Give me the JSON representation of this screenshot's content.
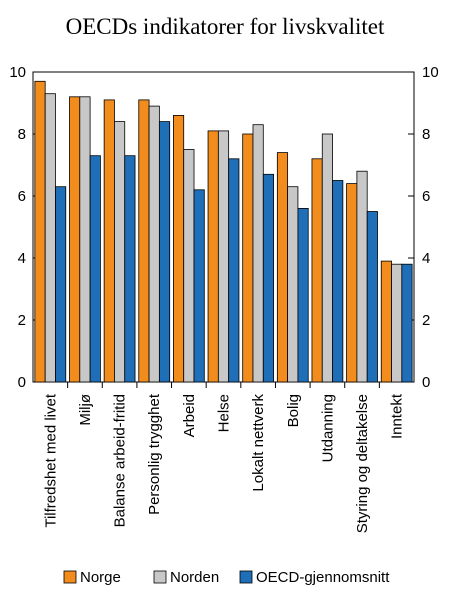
{
  "chart_data": {
    "type": "bar",
    "title": "OECDs indikatorer for livskvalitet",
    "xlabel": "",
    "ylabel": "",
    "ylim": [
      0,
      10
    ],
    "yticks": [
      0,
      2,
      4,
      6,
      8,
      10
    ],
    "categories": [
      "Tilfredshet med livet",
      "Miljø",
      "Balanse arbeid-fritid",
      "Personlig trygghet",
      "Arbeid",
      "Helse",
      "Lokalt nettverk",
      "Bolig",
      "Utdanning",
      "Styring og deltakelse",
      "Inntekt"
    ],
    "series": [
      {
        "name": "Norge",
        "color": "#f28c1c",
        "values": [
          9.7,
          9.2,
          9.1,
          9.1,
          8.6,
          8.1,
          8.0,
          7.4,
          7.2,
          6.4,
          3.9
        ]
      },
      {
        "name": "Norden",
        "color": "#c8c8c8",
        "values": [
          9.3,
          9.2,
          8.4,
          8.9,
          7.5,
          8.1,
          8.3,
          6.3,
          8.0,
          6.8,
          3.8
        ]
      },
      {
        "name": "OECD-gjennomsnitt",
        "color": "#1f6fb8",
        "values": [
          6.3,
          7.3,
          7.3,
          8.4,
          6.2,
          7.2,
          6.7,
          5.6,
          6.5,
          5.5,
          3.8
        ]
      }
    ],
    "legend_position": "bottom",
    "grid": false,
    "secondary_axis": true
  }
}
